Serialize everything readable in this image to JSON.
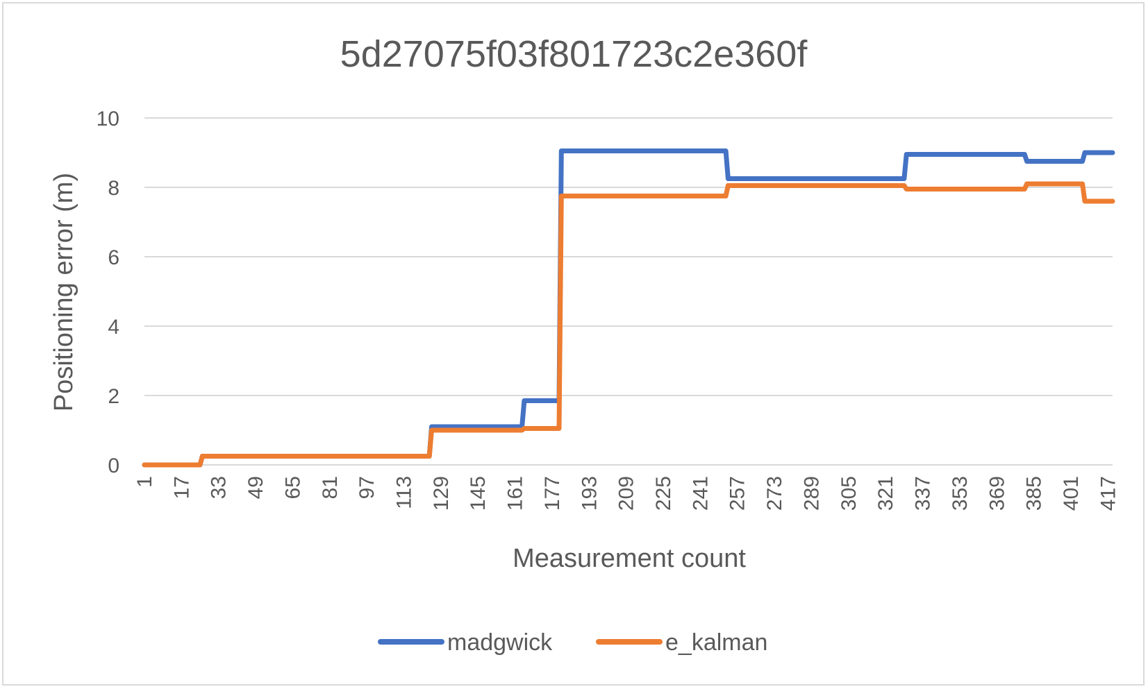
{
  "chart_data": {
    "type": "line",
    "title": "5d27075f03f801723c2e360f",
    "xlabel": "Measurement count",
    "ylabel": "Positioning error (m)",
    "ylim": [
      0,
      10
    ],
    "yticks": [
      0,
      2,
      4,
      6,
      8,
      10
    ],
    "xlim": [
      1,
      419
    ],
    "xticks": [
      1,
      17,
      33,
      49,
      65,
      81,
      97,
      113,
      129,
      145,
      161,
      177,
      193,
      209,
      225,
      241,
      257,
      273,
      289,
      305,
      321,
      337,
      353,
      369,
      385,
      401,
      417
    ],
    "grid": true,
    "legend_position": "bottom",
    "series": [
      {
        "name": "madgwick",
        "color": "#4472c4",
        "points": [
          [
            1,
            0
          ],
          [
            25,
            0
          ],
          [
            26,
            0.25
          ],
          [
            124,
            0.25
          ],
          [
            125,
            1.1
          ],
          [
            164,
            1.1
          ],
          [
            165,
            1.85
          ],
          [
            180,
            1.85
          ],
          [
            181,
            9.05
          ],
          [
            252,
            9.05
          ],
          [
            253,
            8.25
          ],
          [
            329,
            8.25
          ],
          [
            330,
            8.95
          ],
          [
            381,
            8.95
          ],
          [
            382,
            8.75
          ],
          [
            406,
            8.75
          ],
          [
            407,
            9.0
          ],
          [
            419,
            9.0
          ]
        ]
      },
      {
        "name": "e_kalman",
        "color": "#ed7d31",
        "points": [
          [
            1,
            0
          ],
          [
            25,
            0
          ],
          [
            26,
            0.25
          ],
          [
            124,
            0.25
          ],
          [
            125,
            1.0
          ],
          [
            164,
            1.0
          ],
          [
            165,
            1.05
          ],
          [
            180,
            1.05
          ],
          [
            181,
            7.75
          ],
          [
            252,
            7.75
          ],
          [
            253,
            8.05
          ],
          [
            329,
            8.05
          ],
          [
            330,
            7.95
          ],
          [
            381,
            7.95
          ],
          [
            382,
            8.1
          ],
          [
            406,
            8.1
          ],
          [
            407,
            7.6
          ],
          [
            419,
            7.6
          ]
        ]
      }
    ]
  }
}
